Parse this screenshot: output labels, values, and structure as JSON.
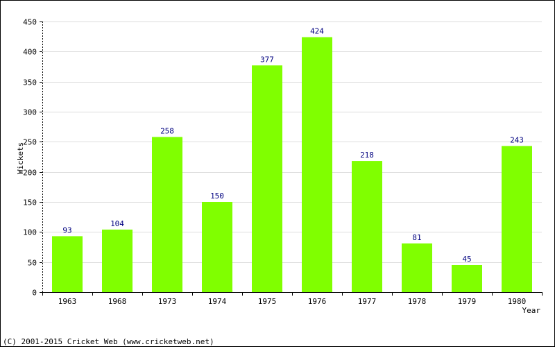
{
  "colors": {
    "bar": "#80ff00",
    "label": "#000080",
    "grid": "#dcdcdc",
    "axis": "#000000",
    "text": "#000000"
  },
  "chart_data": {
    "type": "bar",
    "categories": [
      "1963",
      "1968",
      "1973",
      "1974",
      "1975",
      "1976",
      "1977",
      "1978",
      "1979",
      "1980"
    ],
    "values": [
      93,
      104,
      258,
      150,
      377,
      424,
      218,
      81,
      45,
      243
    ],
    "xlabel": "Year",
    "ylabel": "Wickets",
    "ylim": [
      0,
      450
    ],
    "yticks": [
      0,
      50,
      100,
      150,
      200,
      250,
      300,
      350,
      400,
      450
    ],
    "grid": true,
    "data_labels": true
  },
  "footer": {
    "copyright": "(C) 2001-2015 Cricket Web (www.cricketweb.net)"
  }
}
